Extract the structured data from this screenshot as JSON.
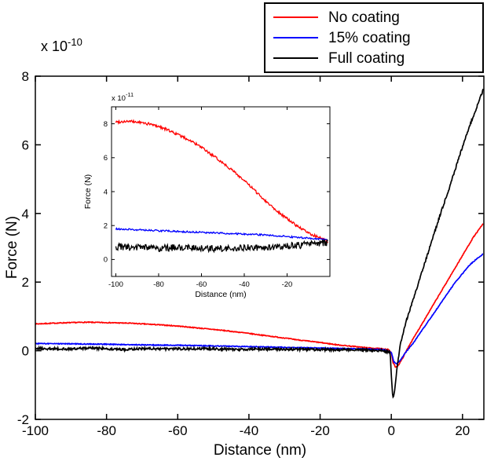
{
  "figure": {
    "background": "#ffffff"
  },
  "chart_data": [
    {
      "id": "main",
      "type": "line",
      "title": "",
      "xlabel": "Distance (nm)",
      "ylabel": "Force (N)",
      "scale": {
        "base": "x 10",
        "exp": "-10"
      },
      "xlim": [
        -100,
        26
      ],
      "ylim": [
        -2,
        8
      ],
      "xticks": [
        -100,
        -80,
        -60,
        -40,
        -20,
        0,
        20
      ],
      "yticks": [
        -2,
        0,
        2,
        4,
        6,
        8
      ],
      "grid": false,
      "legend": {
        "position": "top-right",
        "entries": [
          {
            "label": "No coating",
            "color": "#ff0000"
          },
          {
            "label": "15% coating",
            "color": "#0000ff"
          },
          {
            "label": "Full coating",
            "color": "#000000"
          }
        ]
      },
      "series": [
        {
          "name": "No coating",
          "color": "#ff0000",
          "noise": 0.012,
          "points": [
            [
              -100,
              0.78
            ],
            [
              -93,
              0.81
            ],
            [
              -86,
              0.83
            ],
            [
              -80,
              0.82
            ],
            [
              -73,
              0.8
            ],
            [
              -66,
              0.76
            ],
            [
              -60,
              0.72
            ],
            [
              -54,
              0.66
            ],
            [
              -48,
              0.6
            ],
            [
              -42,
              0.53
            ],
            [
              -36,
              0.45
            ],
            [
              -30,
              0.37
            ],
            [
              -25,
              0.3
            ],
            [
              -20,
              0.24
            ],
            [
              -15,
              0.17
            ],
            [
              -10,
              0.12
            ],
            [
              -6,
              0.08
            ],
            [
              -3,
              0.06
            ],
            [
              -1,
              0.04
            ],
            [
              0,
              -0.05
            ],
            [
              0.5,
              -0.35
            ],
            [
              1.2,
              -0.48
            ],
            [
              2,
              -0.42
            ],
            [
              3,
              -0.25
            ],
            [
              4,
              -0.05
            ],
            [
              5,
              0.15
            ],
            [
              7,
              0.5
            ],
            [
              9,
              0.85
            ],
            [
              11,
              1.2
            ],
            [
              13,
              1.55
            ],
            [
              15,
              1.9
            ],
            [
              17,
              2.25
            ],
            [
              19,
              2.6
            ],
            [
              21,
              2.95
            ],
            [
              23,
              3.3
            ],
            [
              25.8,
              3.7
            ]
          ]
        },
        {
          "name": "15% coating",
          "color": "#0000ff",
          "noise": 0.012,
          "points": [
            [
              -100,
              0.21
            ],
            [
              -90,
              0.2
            ],
            [
              -80,
              0.19
            ],
            [
              -70,
              0.17
            ],
            [
              -60,
              0.16
            ],
            [
              -50,
              0.14
            ],
            [
              -40,
              0.12
            ],
            [
              -30,
              0.1
            ],
            [
              -20,
              0.08
            ],
            [
              -12,
              0.06
            ],
            [
              -6,
              0.05
            ],
            [
              -2,
              0.03
            ],
            [
              0,
              -0.05
            ],
            [
              0.7,
              -0.32
            ],
            [
              1.5,
              -0.38
            ],
            [
              2.5,
              -0.28
            ],
            [
              4,
              -0.05
            ],
            [
              6,
              0.2
            ],
            [
              8,
              0.5
            ],
            [
              10,
              0.8
            ],
            [
              12,
              1.1
            ],
            [
              14,
              1.4
            ],
            [
              16,
              1.7
            ],
            [
              18,
              2.0
            ],
            [
              20,
              2.25
            ],
            [
              22,
              2.5
            ],
            [
              24,
              2.68
            ],
            [
              25.8,
              2.82
            ]
          ]
        },
        {
          "name": "Full coating",
          "color": "#000000",
          "noise": 0.035,
          "points": [
            [
              -100,
              0.07
            ],
            [
              -92,
              0.05
            ],
            [
              -84,
              0.08
            ],
            [
              -76,
              0.04
            ],
            [
              -68,
              0.06
            ],
            [
              -60,
              0.05
            ],
            [
              -52,
              0.06
            ],
            [
              -44,
              0.04
            ],
            [
              -36,
              0.05
            ],
            [
              -28,
              0.04
            ],
            [
              -20,
              0.03
            ],
            [
              -12,
              0.03
            ],
            [
              -6,
              0.02
            ],
            [
              -2,
              0.0
            ],
            [
              -0.3,
              -0.05
            ],
            [
              0,
              -0.7
            ],
            [
              0.4,
              -1.38
            ],
            [
              0.9,
              -1.2
            ],
            [
              1.6,
              -0.5
            ],
            [
              2.5,
              0.15
            ],
            [
              4,
              0.8
            ],
            [
              6,
              1.45
            ],
            [
              8,
              2.1
            ],
            [
              10,
              2.75
            ],
            [
              12,
              3.4
            ],
            [
              14,
              4.05
            ],
            [
              16,
              4.65
            ],
            [
              18,
              5.3
            ],
            [
              20,
              5.95
            ],
            [
              22,
              6.55
            ],
            [
              24,
              7.1
            ],
            [
              25.8,
              7.6
            ]
          ]
        }
      ]
    },
    {
      "id": "inset",
      "type": "line",
      "title": "",
      "xlabel": "Distance (nm)",
      "ylabel": "Force (N)",
      "scale": {
        "base": "x 10",
        "exp": "-11"
      },
      "xlim": [
        -102,
        0
      ],
      "ylim": [
        -1,
        9
      ],
      "xticks": [
        -100,
        -80,
        -60,
        -40,
        -20
      ],
      "yticks": [
        0,
        2,
        4,
        6,
        8
      ],
      "grid": false,
      "series": [
        {
          "name": "No coating",
          "color": "#ff0000",
          "noise": 0.08,
          "points": [
            [
              -100,
              8.1
            ],
            [
              -95,
              8.15
            ],
            [
              -90,
              8.1
            ],
            [
              -85,
              8.0
            ],
            [
              -80,
              7.85
            ],
            [
              -75,
              7.6
            ],
            [
              -70,
              7.3
            ],
            [
              -65,
              7.0
            ],
            [
              -60,
              6.6
            ],
            [
              -55,
              6.15
            ],
            [
              -50,
              5.7
            ],
            [
              -45,
              5.2
            ],
            [
              -40,
              4.65
            ],
            [
              -35,
              4.05
            ],
            [
              -30,
              3.45
            ],
            [
              -25,
              2.9
            ],
            [
              -20,
              2.4
            ],
            [
              -15,
              1.95
            ],
            [
              -10,
              1.55
            ],
            [
              -6,
              1.35
            ],
            [
              -3,
              1.2
            ],
            [
              -1,
              1.0
            ]
          ]
        },
        {
          "name": "15% coating",
          "color": "#0000ff",
          "noise": 0.05,
          "points": [
            [
              -100,
              1.8
            ],
            [
              -90,
              1.75
            ],
            [
              -80,
              1.7
            ],
            [
              -70,
              1.65
            ],
            [
              -60,
              1.6
            ],
            [
              -50,
              1.55
            ],
            [
              -40,
              1.5
            ],
            [
              -30,
              1.45
            ],
            [
              -20,
              1.35
            ],
            [
              -10,
              1.25
            ],
            [
              -1,
              1.15
            ]
          ]
        },
        {
          "name": "Full coating",
          "color": "#000000",
          "noise": 0.2,
          "points": [
            [
              -100,
              0.75
            ],
            [
              -90,
              0.7
            ],
            [
              -80,
              0.65
            ],
            [
              -70,
              0.72
            ],
            [
              -60,
              0.68
            ],
            [
              -50,
              0.62
            ],
            [
              -40,
              0.68
            ],
            [
              -30,
              0.72
            ],
            [
              -20,
              0.78
            ],
            [
              -10,
              0.88
            ],
            [
              -1,
              1.0
            ]
          ]
        }
      ]
    }
  ]
}
